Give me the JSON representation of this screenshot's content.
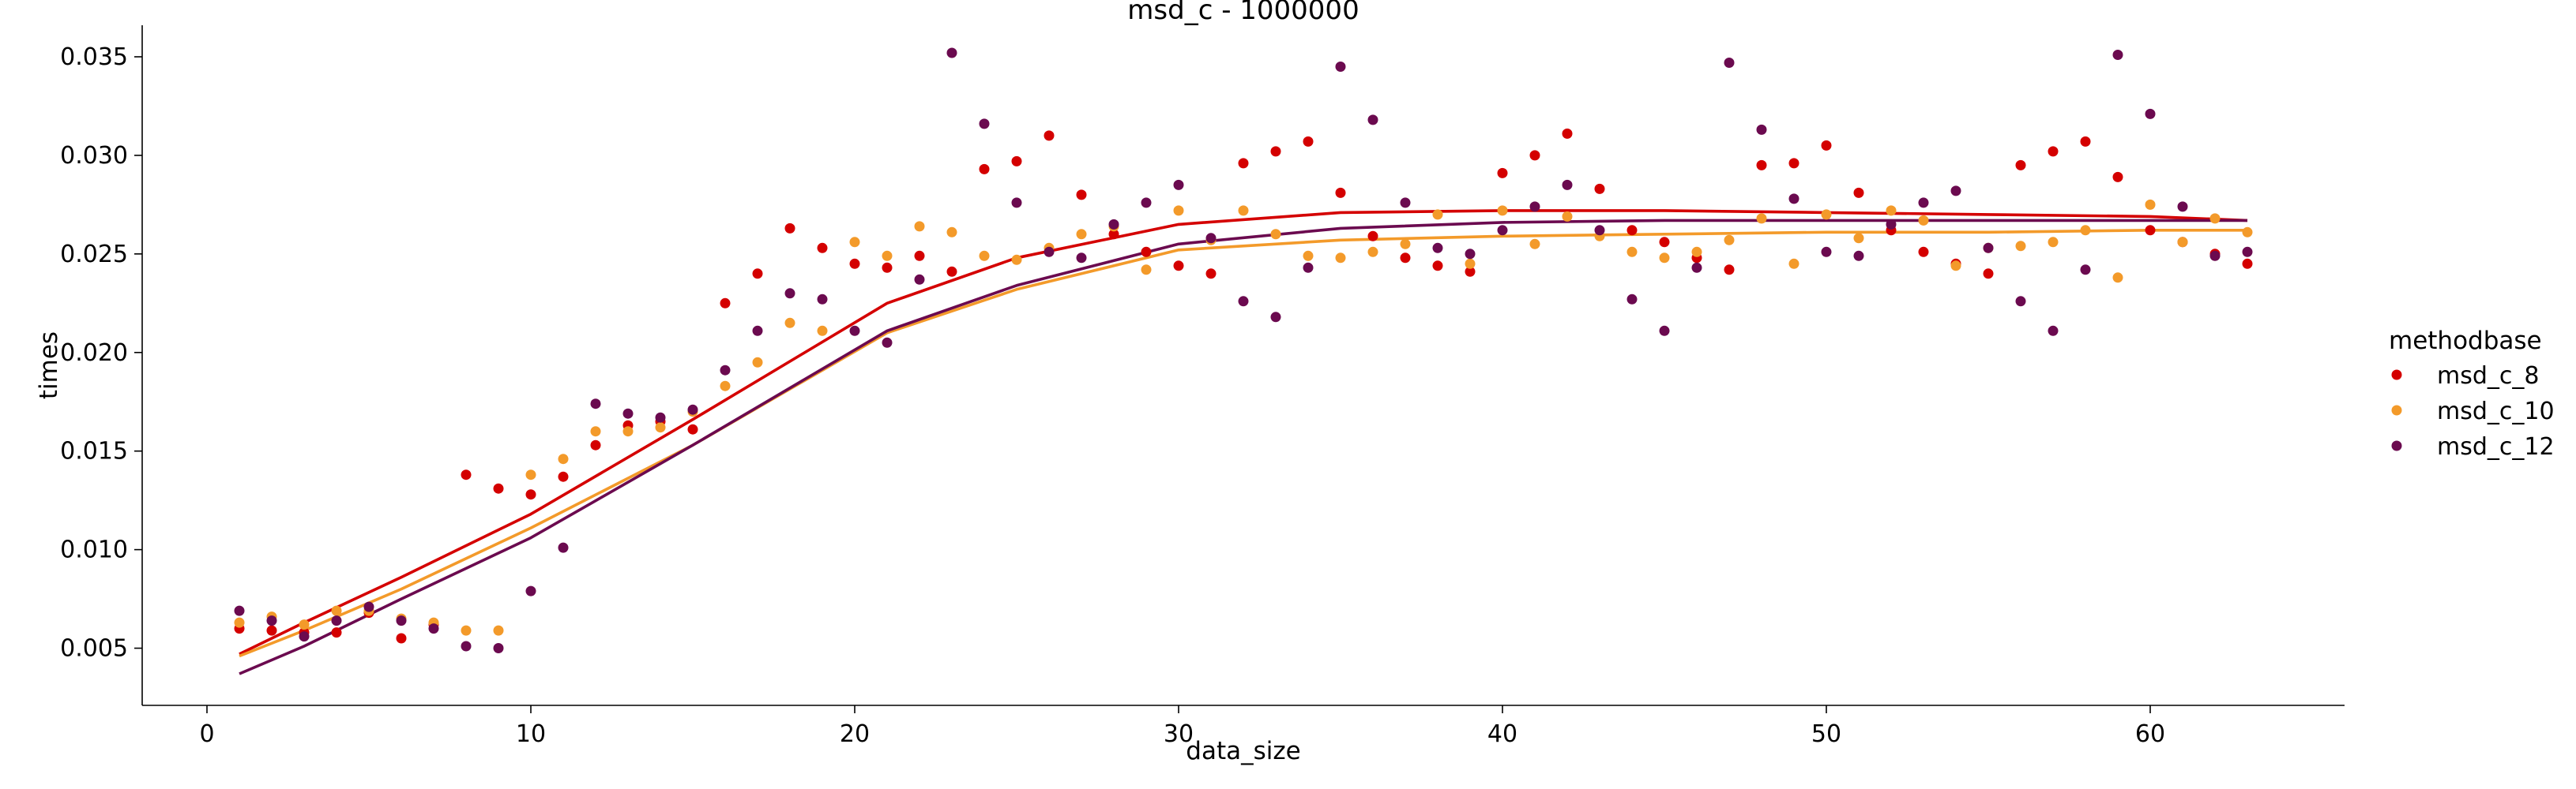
{
  "chart_data": {
    "type": "scatter",
    "title": "msd_c - 1000000",
    "xlabel": "data_size",
    "ylabel": "times",
    "xlim": [
      -2,
      66
    ],
    "ylim": [
      0.0021,
      0.0366
    ],
    "xticks": [
      0,
      10,
      20,
      30,
      40,
      50,
      60
    ],
    "xtick_labels": [
      "0",
      "10",
      "20",
      "30",
      "40",
      "50",
      "60"
    ],
    "yticks": [
      0.005,
      0.01,
      0.015,
      0.02,
      0.025,
      0.03,
      0.035
    ],
    "ytick_labels": [
      "0.005",
      "0.010",
      "0.015",
      "0.020",
      "0.025",
      "0.030",
      "0.035"
    ],
    "grid": false,
    "legend": {
      "title": "methodbase",
      "placement": "right"
    },
    "series": [
      {
        "name": "msd_c_8",
        "color": "#d40000",
        "x": [
          1,
          2,
          3,
          4,
          5,
          6,
          7,
          8,
          9,
          10,
          11,
          12,
          13,
          14,
          15,
          16,
          17,
          18,
          19,
          20,
          21,
          22,
          23,
          24,
          25,
          26,
          27,
          28,
          29,
          30,
          31,
          32,
          33,
          34,
          35,
          36,
          37,
          38,
          39,
          40,
          41,
          42,
          43,
          44,
          45,
          46,
          47,
          48,
          49,
          50,
          51,
          52,
          53,
          54,
          55,
          56,
          57,
          58,
          59,
          60,
          61,
          62,
          63
        ],
        "y": [
          0.006,
          0.0059,
          0.0058,
          0.0058,
          0.0068,
          0.0055,
          0.0062,
          0.0138,
          0.0131,
          0.0128,
          0.0137,
          0.0153,
          0.0163,
          0.0165,
          0.0161,
          0.0225,
          0.024,
          0.0263,
          0.0253,
          0.0245,
          0.0243,
          0.0249,
          0.0241,
          0.0293,
          0.0297,
          0.031,
          0.028,
          0.026,
          0.0251,
          0.0244,
          0.024,
          0.0296,
          0.0302,
          0.0307,
          0.0281,
          0.0259,
          0.0248,
          0.0244,
          0.0241,
          0.0291,
          0.03,
          0.0311,
          0.0283,
          0.0262,
          0.0256,
          0.0248,
          0.0242,
          0.0295,
          0.0296,
          0.0305,
          0.0281,
          0.0262,
          0.0251,
          0.0245,
          0.024,
          0.0295,
          0.0302,
          0.0307,
          0.0289,
          0.0262,
          0.0256,
          0.025,
          0.0245
        ],
        "fit_x": [
          1,
          3,
          6,
          10,
          15,
          21,
          25,
          30,
          35,
          40,
          45,
          50,
          55,
          60,
          63
        ],
        "fit_y": [
          0.0047,
          0.0063,
          0.0086,
          0.0118,
          0.0166,
          0.0225,
          0.0248,
          0.0265,
          0.0271,
          0.0272,
          0.0272,
          0.0271,
          0.027,
          0.0269,
          0.0267
        ]
      },
      {
        "name": "msd_c_10",
        "color": "#f39a2a",
        "x": [
          1,
          2,
          3,
          4,
          5,
          6,
          7,
          8,
          9,
          10,
          11,
          12,
          13,
          14,
          15,
          16,
          17,
          18,
          19,
          20,
          21,
          22,
          23,
          24,
          25,
          26,
          27,
          28,
          29,
          30,
          31,
          32,
          33,
          34,
          35,
          36,
          37,
          38,
          39,
          40,
          41,
          42,
          43,
          44,
          45,
          46,
          47,
          48,
          49,
          50,
          51,
          52,
          53,
          54,
          55,
          56,
          57,
          58,
          59,
          60,
          61,
          62,
          63
        ],
        "y": [
          0.0063,
          0.0066,
          0.0062,
          0.0069,
          0.0069,
          0.0065,
          0.0063,
          0.0059,
          0.0059,
          0.0138,
          0.0146,
          0.016,
          0.016,
          0.0162,
          0.017,
          0.0183,
          0.0195,
          0.0215,
          0.0211,
          0.0256,
          0.0249,
          0.0264,
          0.0261,
          0.0249,
          0.0247,
          0.0253,
          0.026,
          0.0264,
          0.0242,
          0.0272,
          0.0257,
          0.0272,
          0.026,
          0.0249,
          0.0248,
          0.0251,
          0.0255,
          0.027,
          0.0245,
          0.0272,
          0.0255,
          0.0269,
          0.0259,
          0.0251,
          0.0248,
          0.0251,
          0.0257,
          0.0268,
          0.0245,
          0.027,
          0.0258,
          0.0272,
          0.0267,
          0.0244,
          0.0253,
          0.0254,
          0.0256,
          0.0262,
          0.0238,
          0.0275,
          0.0256,
          0.0268,
          0.0261
        ],
        "fit_x": [
          1,
          3,
          6,
          10,
          15,
          21,
          25,
          30,
          35,
          40,
          45,
          50,
          55,
          60,
          63
        ],
        "fit_y": [
          0.0046,
          0.0059,
          0.008,
          0.0111,
          0.0153,
          0.021,
          0.0232,
          0.0252,
          0.0257,
          0.0259,
          0.026,
          0.0261,
          0.0261,
          0.0262,
          0.0262
        ]
      },
      {
        "name": "msd_c_12",
        "color": "#6b0a4f",
        "x": [
          1,
          2,
          3,
          4,
          5,
          6,
          7,
          8,
          9,
          10,
          11,
          12,
          13,
          14,
          15,
          16,
          17,
          18,
          19,
          20,
          21,
          22,
          23,
          24,
          25,
          26,
          27,
          28,
          29,
          30,
          31,
          32,
          33,
          34,
          35,
          36,
          37,
          38,
          39,
          40,
          41,
          42,
          43,
          44,
          45,
          46,
          47,
          48,
          49,
          50,
          51,
          52,
          53,
          54,
          55,
          56,
          57,
          58,
          59,
          60,
          61,
          62,
          63
        ],
        "y": [
          0.0069,
          0.0064,
          0.0056,
          0.0064,
          0.0071,
          0.0064,
          0.006,
          0.0051,
          0.005,
          0.0079,
          0.0101,
          0.0174,
          0.0169,
          0.0167,
          0.0171,
          0.0191,
          0.0211,
          0.023,
          0.0227,
          0.0211,
          0.0205,
          0.0237,
          0.0352,
          0.0316,
          0.0276,
          0.0251,
          0.0248,
          0.0265,
          0.0276,
          0.0285,
          0.0258,
          0.0226,
          0.0218,
          0.0243,
          0.0345,
          0.0318,
          0.0276,
          0.0253,
          0.025,
          0.0262,
          0.0274,
          0.0285,
          0.0262,
          0.0227,
          0.0211,
          0.0243,
          0.0347,
          0.0313,
          0.0278,
          0.0251,
          0.0249,
          0.0265,
          0.0276,
          0.0282,
          0.0253,
          0.0226,
          0.0211,
          0.0242,
          0.0351,
          0.0321,
          0.0274,
          0.0249,
          0.0251
        ],
        "fit_x": [
          1,
          3,
          6,
          10,
          15,
          21,
          25,
          30,
          35,
          40,
          45,
          50,
          55,
          60,
          63
        ],
        "fit_y": [
          0.0037,
          0.0051,
          0.0075,
          0.0106,
          0.0153,
          0.0211,
          0.0234,
          0.0255,
          0.0263,
          0.0266,
          0.0267,
          0.0267,
          0.0267,
          0.0267,
          0.0267
        ]
      }
    ]
  }
}
